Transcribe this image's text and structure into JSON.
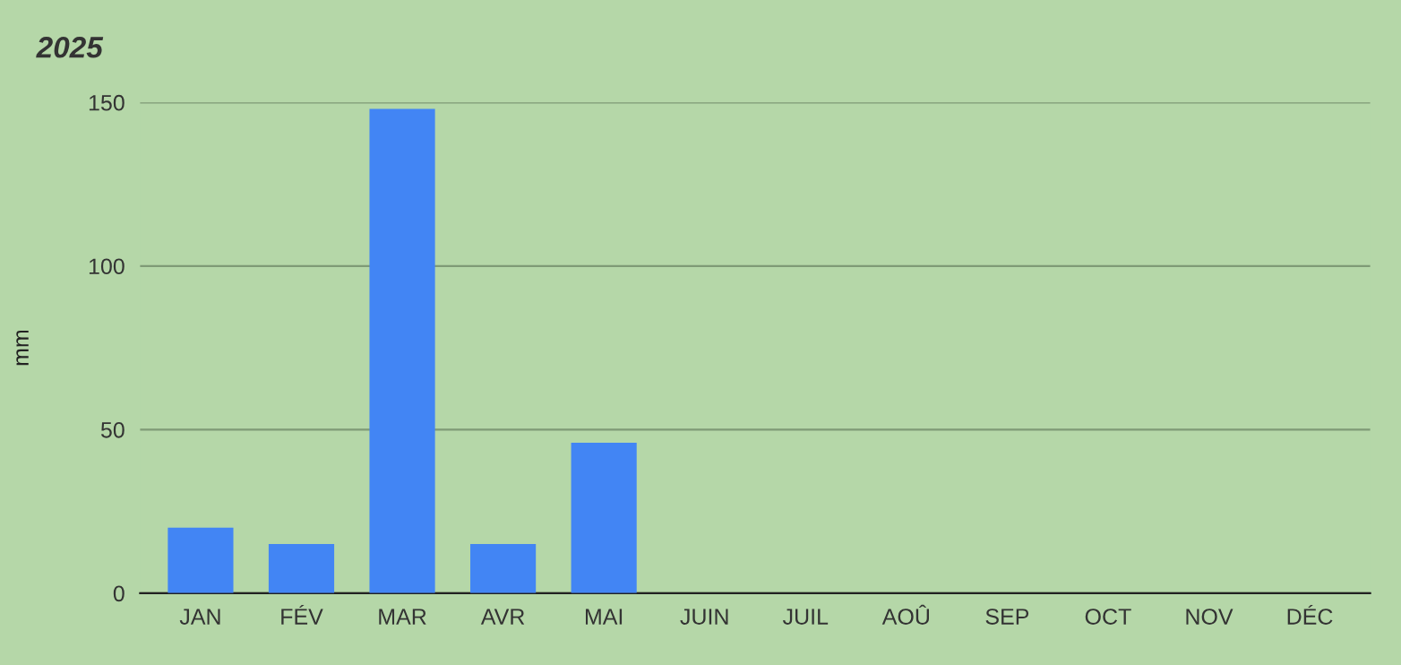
{
  "chart_data": {
    "type": "bar",
    "title": "2025",
    "ylabel": "mm",
    "categories": [
      "JAN",
      "FÉV",
      "MAR",
      "AVR",
      "MAI",
      "JUIN",
      "JUIL",
      "AOÛ",
      "SEP",
      "OCT",
      "NOV",
      "DÉC"
    ],
    "values": [
      20,
      15,
      148,
      15,
      46,
      null,
      null,
      null,
      null,
      null,
      null,
      null
    ],
    "color": "#4285f4",
    "ylim": [
      0,
      150
    ],
    "yticks": [
      0,
      50,
      100,
      150
    ],
    "grid": "y",
    "legend": false
  }
}
